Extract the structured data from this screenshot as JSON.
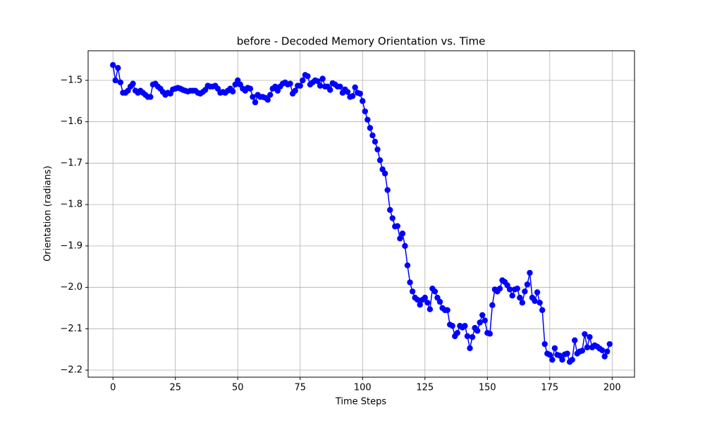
{
  "chart_data": {
    "type": "line",
    "title": "before - Decoded Memory Orientation vs. Time",
    "x_label": "Time Steps",
    "y_label": "Orientation (radians)",
    "grid": true,
    "xlim": [
      -9.95,
      208.95
    ],
    "ylim": [
      -2.217,
      -1.4285
    ],
    "xticks": [
      0,
      25,
      50,
      75,
      100,
      125,
      150,
      175,
      200
    ],
    "yticks": [
      {
        "value": -2.2,
        "label": "−2.2"
      },
      {
        "value": -2.1,
        "label": "−2.1"
      },
      {
        "value": -2.0,
        "label": "−2.0"
      },
      {
        "value": -1.9,
        "label": "−1.9"
      },
      {
        "value": -1.8,
        "label": "−1.8"
      },
      {
        "value": -1.7,
        "label": "−1.7"
      },
      {
        "value": -1.6,
        "label": "−1.6"
      },
      {
        "value": -1.5,
        "label": "−1.5"
      }
    ],
    "series": [
      {
        "color": "#0000ff",
        "x": [
          0,
          1,
          2,
          3,
          4,
          5,
          6,
          7,
          8,
          9,
          10,
          11,
          12,
          13,
          14,
          15,
          16,
          17,
          18,
          19,
          20,
          21,
          22,
          23,
          24,
          25,
          26,
          27,
          28,
          29,
          30,
          31,
          32,
          33,
          34,
          35,
          36,
          37,
          38,
          39,
          40,
          41,
          42,
          43,
          44,
          45,
          46,
          47,
          48,
          49,
          50,
          51,
          52,
          53,
          54,
          55,
          56,
          57,
          58,
          59,
          60,
          61,
          62,
          63,
          64,
          65,
          66,
          67,
          68,
          69,
          70,
          71,
          72,
          73,
          74,
          75,
          76,
          77,
          78,
          79,
          80,
          81,
          82,
          83,
          84,
          85,
          86,
          87,
          88,
          89,
          90,
          91,
          92,
          93,
          94,
          95,
          96,
          97,
          98,
          99,
          100,
          101,
          102,
          103,
          104,
          105,
          106,
          107,
          108,
          109,
          110,
          111,
          112,
          113,
          114,
          115,
          116,
          117,
          118,
          119,
          120,
          121,
          122,
          123,
          124,
          125,
          126,
          127,
          128,
          129,
          130,
          131,
          132,
          133,
          134,
          135,
          136,
          137,
          138,
          139,
          140,
          141,
          142,
          143,
          144,
          145,
          146,
          147,
          148,
          149,
          150,
          151,
          152,
          153,
          154,
          155,
          156,
          157,
          158,
          159,
          160,
          161,
          162,
          163,
          164,
          165,
          166,
          167,
          168,
          169,
          170,
          171,
          172,
          173,
          174,
          175,
          176,
          177,
          178,
          179,
          180,
          181,
          182,
          183,
          184,
          185,
          186,
          187,
          188,
          189,
          190,
          191,
          192,
          193,
          194,
          195,
          196,
          197,
          198,
          199
        ],
        "values": [
          -1.463,
          -1.5,
          -1.47,
          -1.505,
          -1.53,
          -1.53,
          -1.525,
          -1.515,
          -1.508,
          -1.525,
          -1.53,
          -1.525,
          -1.53,
          -1.535,
          -1.54,
          -1.54,
          -1.51,
          -1.508,
          -1.515,
          -1.52,
          -1.528,
          -1.535,
          -1.53,
          -1.532,
          -1.522,
          -1.52,
          -1.518,
          -1.52,
          -1.523,
          -1.525,
          -1.527,
          -1.525,
          -1.525,
          -1.525,
          -1.53,
          -1.532,
          -1.528,
          -1.523,
          -1.513,
          -1.515,
          -1.515,
          -1.513,
          -1.52,
          -1.53,
          -1.528,
          -1.53,
          -1.525,
          -1.52,
          -1.527,
          -1.51,
          -1.5,
          -1.51,
          -1.52,
          -1.525,
          -1.518,
          -1.52,
          -1.54,
          -1.553,
          -1.535,
          -1.54,
          -1.54,
          -1.542,
          -1.547,
          -1.535,
          -1.52,
          -1.515,
          -1.525,
          -1.515,
          -1.508,
          -1.505,
          -1.51,
          -1.508,
          -1.532,
          -1.525,
          -1.513,
          -1.513,
          -1.5,
          -1.487,
          -1.49,
          -1.51,
          -1.505,
          -1.5,
          -1.502,
          -1.513,
          -1.496,
          -1.515,
          -1.515,
          -1.523,
          -1.507,
          -1.51,
          -1.515,
          -1.515,
          -1.53,
          -1.522,
          -1.528,
          -1.54,
          -1.538,
          -1.517,
          -1.53,
          -1.532,
          -1.55,
          -1.575,
          -1.595,
          -1.615,
          -1.633,
          -1.648,
          -1.667,
          -1.693,
          -1.715,
          -1.725,
          -1.765,
          -1.813,
          -1.833,
          -1.853,
          -1.852,
          -1.882,
          -1.87,
          -1.9,
          -1.947,
          -1.988,
          -2.01,
          -2.025,
          -2.03,
          -2.042,
          -2.03,
          -2.025,
          -2.037,
          -2.053,
          -2.003,
          -2.01,
          -2.025,
          -2.035,
          -2.05,
          -2.055,
          -2.055,
          -2.09,
          -2.093,
          -2.118,
          -2.11,
          -2.093,
          -2.097,
          -2.093,
          -2.118,
          -2.147,
          -2.12,
          -2.098,
          -2.105,
          -2.085,
          -2.067,
          -2.08,
          -2.11,
          -2.112,
          -2.043,
          -2.005,
          -2.01,
          -2.003,
          -1.983,
          -1.987,
          -1.995,
          -2.005,
          -2.02,
          -2.005,
          -2.003,
          -2.025,
          -2.037,
          -2.01,
          -1.993,
          -1.965,
          -2.025,
          -2.033,
          -2.012,
          -2.037,
          -2.055,
          -2.137,
          -2.16,
          -2.163,
          -2.175,
          -2.147,
          -2.163,
          -2.165,
          -2.175,
          -2.162,
          -2.16,
          -2.18,
          -2.175,
          -2.128,
          -2.16,
          -2.155,
          -2.153,
          -2.113,
          -2.145,
          -2.12,
          -2.145,
          -2.14,
          -2.143,
          -2.148,
          -2.152,
          -2.167,
          -2.155,
          -2.137
        ]
      }
    ]
  }
}
